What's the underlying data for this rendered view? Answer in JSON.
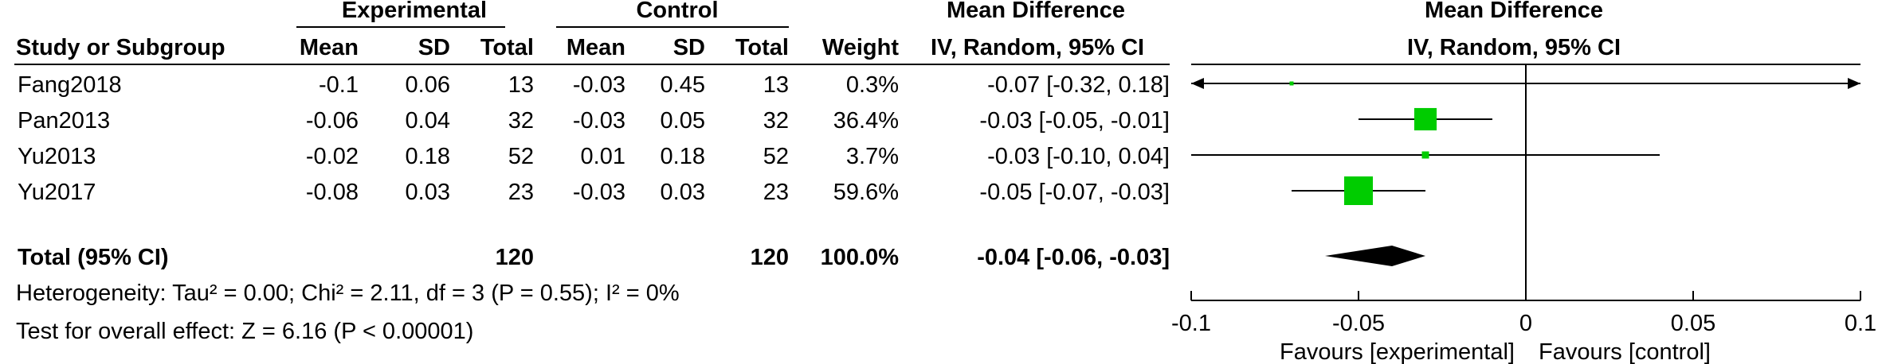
{
  "headers": {
    "experimental": "Experimental",
    "control": "Control",
    "mean_difference": "Mean Difference",
    "study_or_subgroup": "Study or Subgroup",
    "mean": "Mean",
    "sd": "SD",
    "total": "Total",
    "weight": "Weight",
    "method": "IV, Random, 95% CI",
    "plot_title": "Mean Difference",
    "plot_method": "IV, Random, 95% CI"
  },
  "studies": [
    {
      "name": "Fang2018",
      "exp_mean": "-0.1",
      "exp_sd": "0.06",
      "exp_total": "13",
      "ctl_mean": "-0.03",
      "ctl_sd": "0.45",
      "ctl_total": "13",
      "weight": "0.3%",
      "ci_text": "-0.07 [-0.32, 0.18]"
    },
    {
      "name": "Pan2013",
      "exp_mean": "-0.06",
      "exp_sd": "0.04",
      "exp_total": "32",
      "ctl_mean": "-0.03",
      "ctl_sd": "0.05",
      "ctl_total": "32",
      "weight": "36.4%",
      "ci_text": "-0.03 [-0.05, -0.01]"
    },
    {
      "name": "Yu2013",
      "exp_mean": "-0.02",
      "exp_sd": "0.18",
      "exp_total": "52",
      "ctl_mean": "0.01",
      "ctl_sd": "0.18",
      "ctl_total": "52",
      "weight": "3.7%",
      "ci_text": "-0.03 [-0.10, 0.04]"
    },
    {
      "name": "Yu2017",
      "exp_mean": "-0.08",
      "exp_sd": "0.03",
      "exp_total": "23",
      "ctl_mean": "-0.03",
      "ctl_sd": "0.03",
      "ctl_total": "23",
      "weight": "59.6%",
      "ci_text": "-0.05 [-0.07, -0.03]"
    }
  ],
  "total": {
    "label": "Total (95% CI)",
    "exp_total": "120",
    "ctl_total": "120",
    "weight": "100.0%",
    "ci_text": "-0.04 [-0.06, -0.03]"
  },
  "heterogeneity": "Heterogeneity: Tau² = 0.00; Chi² = 2.11, df = 3 (P = 0.55); I² = 0%",
  "overall_effect": "Test for overall effect: Z = 6.16 (P < 0.00001)",
  "chart_data": {
    "type": "forest",
    "xlim": [
      -0.1,
      0.1
    ],
    "x_ticks": [
      -0.1,
      -0.05,
      0,
      0.05,
      0.1
    ],
    "x_tick_labels": [
      "-0.1",
      "-0.05",
      "0",
      "0.05",
      "0.1"
    ],
    "favours_left": "Favours [experimental]",
    "favours_right": "Favours [control]",
    "marker_color": "#00cc00",
    "diamond_color": "#000000",
    "studies": [
      {
        "name": "Fang2018",
        "estimate": -0.07,
        "ci_low": -0.32,
        "ci_high": 0.18,
        "weight": 0.3
      },
      {
        "name": "Pan2013",
        "estimate": -0.03,
        "ci_low": -0.05,
        "ci_high": -0.01,
        "weight": 36.4
      },
      {
        "name": "Yu2013",
        "estimate": -0.03,
        "ci_low": -0.1,
        "ci_high": 0.04,
        "weight": 3.7
      },
      {
        "name": "Yu2017",
        "estimate": -0.05,
        "ci_low": -0.07,
        "ci_high": -0.03,
        "weight": 59.6
      }
    ],
    "pooled": {
      "estimate": -0.04,
      "ci_low": -0.06,
      "ci_high": -0.03
    }
  }
}
